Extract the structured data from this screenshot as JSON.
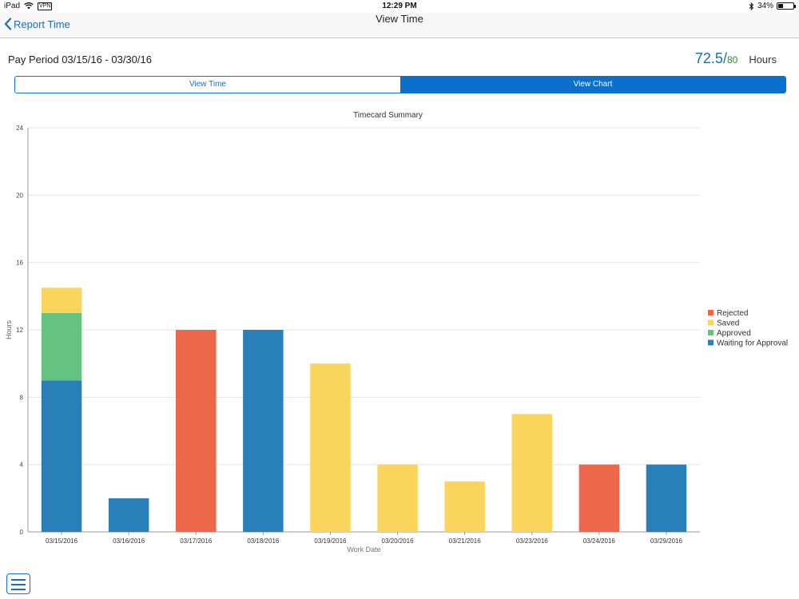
{
  "status_bar": {
    "device": "iPad",
    "vpn": "VPN",
    "time": "12:29 PM",
    "battery": "34%",
    "battery_level": 0.34
  },
  "nav": {
    "back_label": "Report Time",
    "title": "View Time"
  },
  "pay_period": "Pay Period 03/15/16 - 03/30/16",
  "hours": {
    "value": "72.5",
    "separator": "/",
    "max": "80",
    "unit": "Hours"
  },
  "tabs": [
    {
      "label": "View Time",
      "active": false
    },
    {
      "label": "View Chart",
      "active": true
    }
  ],
  "colors": {
    "Rejected": "#ef674a",
    "Saved": "#fad55c",
    "Approved": "#65c381",
    "Waiting for Approval": "#2980b9"
  },
  "chart_data": {
    "type": "bar",
    "stacked": true,
    "title": "Timecard Summary",
    "xlabel": "Work Date",
    "ylabel": "Hours",
    "ylim": [
      0,
      24
    ],
    "yticks": [
      0,
      4,
      8,
      12,
      16,
      20,
      24
    ],
    "grid": true,
    "legend_position": "right",
    "categories": [
      "03/15/2016",
      "03/16/2016",
      "03/17/2016",
      "03/18/2016",
      "03/19/2016",
      "03/20/2016",
      "03/21/2016",
      "03/23/2016",
      "03/24/2016",
      "03/29/2016"
    ],
    "series": [
      {
        "name": "Waiting for Approval",
        "values": [
          9,
          2,
          0,
          12,
          0,
          0,
          0,
          0,
          0,
          4
        ]
      },
      {
        "name": "Approved",
        "values": [
          4,
          0,
          0,
          0,
          0,
          0,
          0,
          0,
          0,
          0
        ]
      },
      {
        "name": "Saved",
        "values": [
          1.5,
          0,
          0,
          0,
          10,
          4,
          3,
          7,
          0,
          0
        ]
      },
      {
        "name": "Rejected",
        "values": [
          0,
          0,
          12,
          0,
          0,
          0,
          0,
          0,
          4,
          0
        ]
      }
    ],
    "legend_order": [
      "Rejected",
      "Saved",
      "Approved",
      "Waiting for Approval"
    ]
  }
}
